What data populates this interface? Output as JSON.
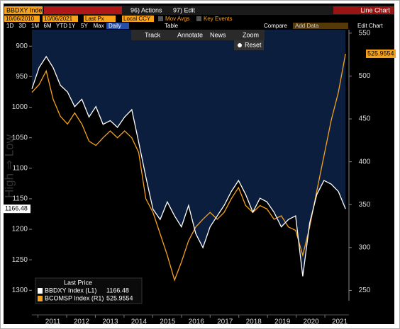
{
  "toolbar": {
    "security": "BBDXY Index",
    "actions": "96) Actions",
    "edit": "97) Edit",
    "chart_kind": "Line Chart",
    "start_date": "10/06/2010",
    "end_date": "10/06/2021",
    "field": "Last Px",
    "currency": "Local CCY",
    "mov_avgs": "Mov Avgs",
    "key_events": "Key Events",
    "periods": [
      "1D",
      "3D",
      "1M",
      "6M",
      "YTD",
      "1Y",
      "5Y",
      "Max"
    ],
    "frequency": "Daily",
    "table": "Table",
    "compare": "Compare",
    "add_data": "Add Data",
    "edit_chart": "Edit Chart",
    "tools": [
      "Track",
      "Annotate",
      "News",
      "Zoom"
    ],
    "reset": "Reset"
  },
  "chart_data": {
    "type": "line",
    "y_label": "High ⇒ Low",
    "legend_title": "Last Price",
    "legend": "bottom-left",
    "grid": false,
    "y_inverted": true,
    "x": [
      2010.77,
      2011.02,
      2011.27,
      2011.51,
      2011.76,
      2012.01,
      2012.26,
      2012.51,
      2012.76,
      2013.0,
      2013.25,
      2013.5,
      2013.75,
      2014.0,
      2014.25,
      2014.49,
      2014.74,
      2014.99,
      2015.24,
      2015.49,
      2015.74,
      2015.98,
      2016.23,
      2016.48,
      2016.73,
      2016.98,
      2017.23,
      2017.47,
      2017.72,
      2017.97,
      2018.22,
      2018.47,
      2018.72,
      2018.96,
      2019.21,
      2019.46,
      2019.71,
      2019.96,
      2020.21,
      2020.45,
      2020.7,
      2020.95,
      2021.2,
      2021.45,
      2021.7
    ],
    "xlim": [
      2010.77,
      2021.77
    ],
    "xticks": [
      {
        "value": 2011.5,
        "label": "2011"
      },
      {
        "value": 2012.5,
        "label": "2012"
      },
      {
        "value": 2013.5,
        "label": "2013"
      },
      {
        "value": 2014.5,
        "label": "2014"
      },
      {
        "value": 2015.5,
        "label": "2015"
      },
      {
        "value": 2016.5,
        "label": "2016"
      },
      {
        "value": 2017.5,
        "label": "2017"
      },
      {
        "value": 2018.5,
        "label": "2018"
      },
      {
        "value": 2019.5,
        "label": "2019"
      },
      {
        "value": 2020.5,
        "label": "2020"
      },
      {
        "value": 2021.5,
        "label": "2021"
      }
    ],
    "ylim": [
      873,
      1317
    ],
    "yticks": [
      900,
      950,
      1000,
      1050,
      1100,
      1150,
      1200,
      1250,
      1300
    ],
    "y2lim": [
      238,
      554
    ],
    "y2ticks": [
      250,
      300,
      350,
      400,
      450,
      500,
      550
    ],
    "area_color": "#0c1e3e",
    "series": [
      {
        "name": "BBDXY Index (L1)",
        "color": "#ffffff",
        "axis": "y",
        "values": [
          970,
          935,
          917,
          935,
          964,
          975,
          999,
          987,
          1016,
          999,
          1028,
          1022,
          1033,
          1016,
          1004,
          1057,
          1114,
          1167,
          1184,
          1155,
          1178,
          1196,
          1161,
          1207,
          1230,
          1196,
          1178,
          1161,
          1138,
          1120,
          1143,
          1172,
          1149,
          1155,
          1172,
          1196,
          1184,
          1178,
          1277,
          1190,
          1143,
          1120,
          1126,
          1138,
          1166.48
        ]
      },
      {
        "name": "BCOMSP Index (R1)",
        "color": "#f7a21b",
        "axis": "y2",
        "values": [
          481,
          490,
          506,
          473,
          453,
          444,
          457,
          444,
          424,
          419,
          428,
          436,
          428,
          436,
          428,
          411,
          357,
          341,
          316,
          291,
          262,
          283,
          308,
          324,
          333,
          341,
          333,
          341,
          357,
          370,
          349,
          341,
          349,
          345,
          333,
          337,
          324,
          320,
          291,
          324,
          366,
          407,
          448,
          481,
          525.9554
        ]
      }
    ]
  }
}
